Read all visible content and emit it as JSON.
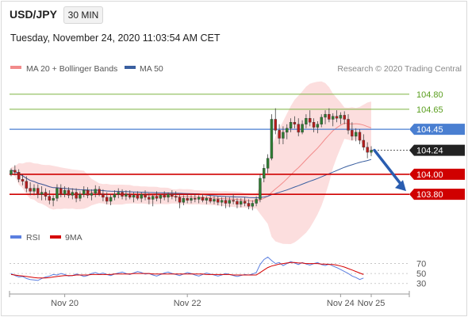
{
  "header": {
    "symbol": "USD/JPY",
    "timeframe": "30 MIN",
    "timestamp": "Tuesday, November 24, 2020 11:03:54 AM CET"
  },
  "colors": {
    "candle_up": "#2e7d32",
    "candle_down": "#b71c1c",
    "bollinger_fill": "#fbd3d3",
    "ma20": "#f28b8b",
    "ma50": "#3a5fa0",
    "resistance_green": "#7cb342",
    "resistance_label_green": "#5a9e1e",
    "pivot_blue": "#4a7fd1",
    "support_red": "#d00000",
    "price_box": "#222222",
    "arrow": "#2a5db0",
    "rsi": "#5b7fe0",
    "rsi_ma": "#d50000"
  },
  "chart_data": [
    {
      "type": "candlestick",
      "title": "USD/JPY 30 MIN",
      "legend": [
        {
          "name": "MA 20 + Bollinger Bands",
          "color": "#f28b8b"
        },
        {
          "name": "MA 50",
          "color": "#3a5fa0"
        }
      ],
      "legend_position": "top-left",
      "watermark": "Research © 2020 Trading Central",
      "x_ticks": [
        "Nov 20",
        "Nov 22",
        "Nov 24",
        "Nov 25"
      ],
      "ylim": [
        103.5,
        104.95
      ],
      "levels": [
        {
          "label": "104.80",
          "value": 104.8,
          "kind": "resistance2"
        },
        {
          "label": "104.65",
          "value": 104.65,
          "kind": "resistance1"
        },
        {
          "label": "104.45",
          "value": 104.45,
          "kind": "pivot"
        },
        {
          "label": "104.00",
          "value": 104.0,
          "kind": "support1"
        },
        {
          "label": "103.80",
          "value": 103.8,
          "kind": "support2"
        }
      ],
      "current_price": {
        "label": "104.24",
        "value": 104.24
      },
      "candles": [
        [
          104.0,
          104.06,
          103.98,
          104.04
        ],
        [
          104.04,
          104.09,
          103.99,
          104.02
        ],
        [
          104.02,
          104.05,
          103.92,
          103.95
        ],
        [
          103.95,
          104.0,
          103.89,
          103.93
        ],
        [
          103.93,
          103.98,
          103.82,
          103.86
        ],
        [
          103.86,
          103.92,
          103.79,
          103.83
        ],
        [
          103.83,
          103.9,
          103.79,
          103.86
        ],
        [
          103.86,
          103.9,
          103.76,
          103.8
        ],
        [
          103.8,
          103.88,
          103.74,
          103.82
        ],
        [
          103.82,
          103.86,
          103.74,
          103.78
        ],
        [
          103.78,
          103.84,
          103.7,
          103.74
        ],
        [
          103.74,
          103.79,
          103.68,
          103.76
        ],
        [
          103.76,
          103.9,
          103.73,
          103.86
        ],
        [
          103.86,
          103.9,
          103.77,
          103.8
        ],
        [
          103.8,
          103.88,
          103.77,
          103.84
        ],
        [
          103.84,
          103.87,
          103.76,
          103.79
        ],
        [
          103.79,
          103.86,
          103.75,
          103.82
        ],
        [
          103.82,
          103.86,
          103.72,
          103.76
        ],
        [
          103.76,
          103.83,
          103.73,
          103.8
        ],
        [
          103.8,
          103.88,
          103.77,
          103.84
        ],
        [
          103.84,
          103.87,
          103.76,
          103.79
        ],
        [
          103.79,
          103.85,
          103.74,
          103.81
        ],
        [
          103.81,
          103.89,
          103.77,
          103.85
        ],
        [
          103.85,
          103.88,
          103.78,
          103.8
        ],
        [
          103.8,
          103.85,
          103.73,
          103.77
        ],
        [
          103.77,
          103.82,
          103.7,
          103.73
        ],
        [
          103.73,
          103.8,
          103.69,
          103.77
        ],
        [
          103.77,
          103.84,
          103.74,
          103.8
        ],
        [
          103.8,
          103.86,
          103.76,
          103.82
        ],
        [
          103.82,
          103.85,
          103.75,
          103.78
        ],
        [
          103.78,
          103.84,
          103.74,
          103.8
        ],
        [
          103.8,
          103.84,
          103.75,
          103.77
        ],
        [
          103.77,
          103.82,
          103.72,
          103.79
        ],
        [
          103.79,
          103.83,
          103.74,
          103.76
        ],
        [
          103.76,
          103.82,
          103.72,
          103.8
        ],
        [
          103.8,
          103.84,
          103.74,
          103.77
        ],
        [
          103.77,
          103.81,
          103.7,
          103.75
        ],
        [
          103.75,
          103.8,
          103.68,
          103.78
        ],
        [
          103.78,
          103.83,
          103.73,
          103.76
        ],
        [
          103.76,
          103.8,
          103.71,
          103.79
        ],
        [
          103.79,
          103.83,
          103.74,
          103.77
        ],
        [
          103.77,
          103.82,
          103.72,
          103.8
        ],
        [
          103.8,
          103.84,
          103.75,
          103.78
        ],
        [
          103.78,
          103.83,
          103.73,
          103.77
        ],
        [
          103.77,
          103.8,
          103.66,
          103.72
        ],
        [
          103.72,
          103.79,
          103.69,
          103.76
        ],
        [
          103.76,
          103.8,
          103.71,
          103.74
        ],
        [
          103.74,
          103.79,
          103.71,
          103.76
        ],
        [
          103.76,
          103.8,
          103.72,
          103.75
        ],
        [
          103.75,
          103.79,
          103.71,
          103.77
        ],
        [
          103.77,
          103.8,
          103.72,
          103.74
        ],
        [
          103.74,
          103.78,
          103.7,
          103.76
        ],
        [
          103.76,
          103.79,
          103.71,
          103.73
        ],
        [
          103.73,
          103.78,
          103.7,
          103.75
        ],
        [
          103.75,
          103.78,
          103.69,
          103.72
        ],
        [
          103.72,
          103.77,
          103.68,
          103.74
        ],
        [
          103.74,
          103.78,
          103.66,
          103.71
        ],
        [
          103.71,
          103.77,
          103.67,
          103.74
        ],
        [
          103.74,
          103.8,
          103.7,
          103.73
        ],
        [
          103.73,
          103.76,
          103.66,
          103.7
        ],
        [
          103.7,
          103.76,
          103.67,
          103.73
        ],
        [
          103.73,
          103.77,
          103.68,
          103.71
        ],
        [
          103.71,
          103.75,
          103.65,
          103.68
        ],
        [
          103.68,
          103.74,
          103.64,
          103.71
        ],
        [
          103.71,
          103.78,
          103.68,
          103.75
        ],
        [
          103.75,
          104.0,
          103.72,
          103.96
        ],
        [
          103.96,
          104.1,
          103.92,
          104.06
        ],
        [
          104.06,
          104.2,
          104.01,
          104.16
        ],
        [
          104.16,
          104.6,
          104.14,
          104.55
        ],
        [
          104.55,
          104.66,
          104.4,
          104.44
        ],
        [
          104.44,
          104.5,
          104.3,
          104.36
        ],
        [
          104.36,
          104.48,
          104.3,
          104.42
        ],
        [
          104.42,
          104.5,
          104.35,
          104.46
        ],
        [
          104.46,
          104.56,
          104.42,
          104.52
        ],
        [
          104.52,
          104.58,
          104.46,
          104.5
        ],
        [
          104.5,
          104.56,
          104.38,
          104.42
        ],
        [
          104.42,
          104.54,
          104.4,
          104.5
        ],
        [
          104.5,
          104.6,
          104.46,
          104.56
        ],
        [
          104.56,
          104.64,
          104.48,
          104.52
        ],
        [
          104.52,
          104.56,
          104.42,
          104.47
        ],
        [
          104.47,
          104.53,
          104.41,
          104.5
        ],
        [
          104.5,
          104.6,
          104.47,
          104.57
        ],
        [
          104.57,
          104.64,
          104.5,
          104.6
        ],
        [
          104.6,
          104.66,
          104.52,
          104.55
        ],
        [
          104.55,
          104.61,
          104.48,
          104.58
        ],
        [
          104.58,
          104.64,
          104.52,
          104.56
        ],
        [
          104.56,
          104.62,
          104.5,
          104.59
        ],
        [
          104.59,
          104.63,
          104.5,
          104.55
        ],
        [
          104.55,
          104.6,
          104.4,
          104.44
        ],
        [
          104.44,
          104.52,
          104.34,
          104.38
        ],
        [
          104.38,
          104.46,
          104.33,
          104.42
        ],
        [
          104.42,
          104.45,
          104.3,
          104.34
        ],
        [
          104.34,
          104.4,
          104.24,
          104.27
        ],
        [
          104.27,
          104.32,
          104.16,
          104.22
        ],
        [
          104.22,
          104.28,
          104.18,
          104.24
        ]
      ]
    },
    {
      "type": "line",
      "legend": [
        {
          "name": "RSI",
          "color": "#5b7fe0"
        },
        {
          "name": "9MA",
          "color": "#d50000"
        }
      ],
      "y_ticks": [
        70,
        50,
        30
      ],
      "ylim": [
        20,
        90
      ],
      "x_ticks": [
        "Nov 20",
        "Nov 22",
        "Nov 24",
        "Nov 25"
      ],
      "series": [
        {
          "name": "RSI",
          "values": [
            50,
            46,
            43,
            44,
            40,
            38,
            37,
            36,
            40,
            43,
            45,
            48,
            47,
            50,
            48,
            45,
            46,
            49,
            47,
            44,
            46,
            50,
            52,
            49,
            51,
            48,
            46,
            49,
            51,
            53,
            50,
            48,
            51,
            54,
            52,
            49,
            50,
            47,
            45,
            48,
            51,
            53,
            50,
            48,
            46,
            49,
            52,
            50,
            47,
            45,
            48,
            51,
            49,
            47,
            45,
            47,
            50,
            48,
            46,
            44,
            46,
            48,
            47,
            49,
            52,
            68,
            78,
            83,
            76,
            70,
            72,
            66,
            70,
            74,
            71,
            68,
            72,
            69,
            67,
            70,
            72,
            68,
            66,
            69,
            65,
            62,
            58,
            54,
            50,
            45,
            42,
            38,
            41
          ]
        },
        {
          "name": "9MA",
          "values": [
            48,
            47,
            46,
            45,
            44,
            43,
            42,
            41,
            41,
            41,
            42,
            43,
            44,
            45,
            46,
            46,
            46,
            47,
            47,
            47,
            47,
            48,
            48,
            48,
            48,
            48,
            48,
            49,
            49,
            49,
            49,
            49,
            50,
            50,
            50,
            50,
            50,
            49,
            49,
            49,
            49,
            49,
            49,
            49,
            49,
            49,
            49,
            49,
            49,
            49,
            49,
            48,
            48,
            48,
            48,
            48,
            48,
            48,
            47,
            47,
            47,
            47,
            47,
            47,
            47,
            52,
            57,
            62,
            65,
            67,
            69,
            70,
            71,
            72,
            72,
            71,
            71,
            70,
            70,
            70,
            70,
            69,
            69,
            68,
            68,
            67,
            65,
            63,
            60,
            57,
            54,
            51,
            48
          ]
        }
      ]
    }
  ]
}
